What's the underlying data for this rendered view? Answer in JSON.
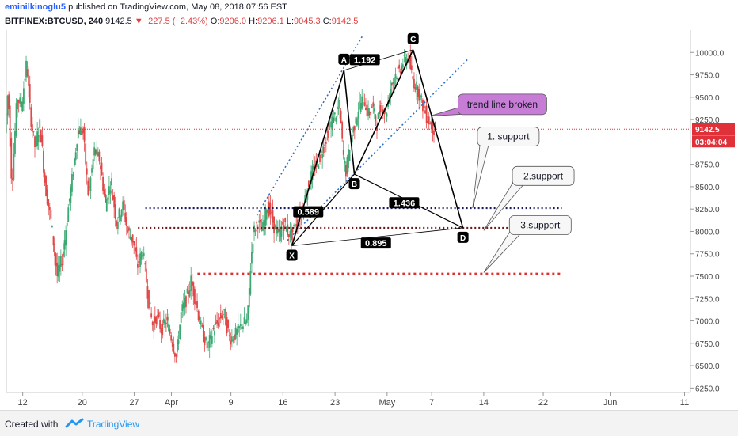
{
  "header": {
    "user": "eminilkinoglu5",
    "published": "published on TradingView.com, May 08, 2018 07:56 EST",
    "symbol": "BITFINEX:BTCUSD, 240",
    "price": "9142.5",
    "change_arrow": "▼",
    "change": "−227.5 (−2.43%)",
    "o_label": "O:",
    "o": "9206.0",
    "h_label": "H:",
    "h": "9206.1",
    "l_label": "L:",
    "l": "9045.3",
    "c_label": "C:",
    "c": "9142.5"
  },
  "footer": {
    "created_with": "Created with",
    "brand": "TradingView",
    "logo_icon": "tradingview-logo-icon"
  },
  "chart_data": {
    "type": "candlestick",
    "ylim": [
      6200,
      10250
    ],
    "y_ticks": [
      6250,
      6500,
      6750,
      7000,
      7250,
      7500,
      7750,
      8000,
      8250,
      8500,
      8750,
      9000,
      9250,
      9500,
      9750,
      10000
    ],
    "y_tick_labels": [
      "6250.0",
      "6500.0",
      "6750.0",
      "7000.0",
      "7250.0",
      "7500.0",
      "7750.0",
      "8000.0",
      "8250.0",
      "8500.0",
      "8750.0",
      "9000.0",
      "9250.0",
      "9500.0",
      "9750.0",
      "10000.0"
    ],
    "x_ticks": [
      {
        "label": "12",
        "day": 0
      },
      {
        "label": "20",
        "day": 8
      },
      {
        "label": "27",
        "day": 15
      },
      {
        "label": "Apr",
        "day": 20
      },
      {
        "label": "9",
        "day": 28
      },
      {
        "label": "16",
        "day": 35
      },
      {
        "label": "23",
        "day": 42
      },
      {
        "label": "May",
        "day": 49
      },
      {
        "label": "7",
        "day": 55
      },
      {
        "label": "14",
        "day": 62
      },
      {
        "label": "22",
        "day": 70
      },
      {
        "label": "Jun",
        "day": 79
      },
      {
        "label": "11",
        "day": 89
      }
    ],
    "x_range_days": [
      -2.2,
      89.8
    ],
    "last_price": {
      "value": 9142.5,
      "label": "9142.5",
      "countdown": "03:04:04",
      "color": "#e0303a"
    },
    "price_path": [
      [
        -2.2,
        9100
      ],
      [
        -1.8,
        9600
      ],
      [
        -1.3,
        8500
      ],
      [
        -0.6,
        9500
      ],
      [
        0,
        9400
      ],
      [
        0.7,
        9900
      ],
      [
        1.2,
        9300
      ],
      [
        1.8,
        8950
      ],
      [
        2.5,
        9200
      ],
      [
        3.2,
        8500
      ],
      [
        4,
        8100
      ],
      [
        4.8,
        7500
      ],
      [
        5.5,
        7700
      ],
      [
        6.2,
        8200
      ],
      [
        7,
        8700
      ],
      [
        7.6,
        9150
      ],
      [
        8.3,
        9100
      ],
      [
        9,
        8400
      ],
      [
        9.8,
        8900
      ],
      [
        10.5,
        8800
      ],
      [
        11.3,
        8300
      ],
      [
        12,
        8550
      ],
      [
        12.8,
        8100
      ],
      [
        13.6,
        8300
      ],
      [
        14.3,
        8000
      ],
      [
        15,
        7900
      ],
      [
        15.6,
        7600
      ],
      [
        16.3,
        7800
      ],
      [
        17,
        7300
      ],
      [
        17.6,
        6950
      ],
      [
        18.2,
        7050
      ],
      [
        18.8,
        6900
      ],
      [
        19.5,
        7000
      ],
      [
        20.2,
        6800
      ],
      [
        20.8,
        6600
      ],
      [
        21.5,
        7100
      ],
      [
        22.2,
        7250
      ],
      [
        22.8,
        7450
      ],
      [
        23.5,
        7200
      ],
      [
        24.2,
        6900
      ],
      [
        25,
        6700
      ],
      [
        25.8,
        6900
      ],
      [
        26.5,
        7000
      ],
      [
        27.2,
        7100
      ],
      [
        28,
        6800
      ],
      [
        28.8,
        6850
      ],
      [
        29.6,
        6950
      ],
      [
        30.4,
        7000
      ],
      [
        30.8,
        7600
      ],
      [
        31.2,
        8000
      ],
      [
        31.8,
        8100
      ],
      [
        32.4,
        8000
      ],
      [
        33.0,
        8300
      ],
      [
        33.5,
        8200
      ],
      [
        34.0,
        8050
      ],
      [
        34.6,
        7950
      ],
      [
        35.2,
        8100
      ],
      [
        35.8,
        8000
      ],
      [
        36.2,
        7950
      ],
      [
        37.0,
        8100
      ],
      [
        37.8,
        8250
      ],
      [
        38.5,
        8500
      ],
      [
        39.3,
        8700
      ],
      [
        40.0,
        8800
      ],
      [
        40.8,
        9000
      ],
      [
        41.6,
        9200
      ],
      [
        42.2,
        9300
      ],
      [
        42.8,
        9400
      ],
      [
        43.2,
        8900
      ],
      [
        43.6,
        8650
      ],
      [
        44.2,
        9000
      ],
      [
        44.8,
        9200
      ],
      [
        45.4,
        9400
      ],
      [
        46.0,
        9500
      ],
      [
        46.6,
        9300
      ],
      [
        47.2,
        9400
      ],
      [
        47.8,
        9200
      ],
      [
        48.4,
        9450
      ],
      [
        49.0,
        9300
      ],
      [
        49.6,
        9600
      ],
      [
        50.2,
        9750
      ],
      [
        50.8,
        9800
      ],
      [
        51.4,
        9900
      ],
      [
        52.0,
        9950
      ],
      [
        52.6,
        9700
      ],
      [
        53.2,
        9600
      ],
      [
        53.8,
        9450
      ],
      [
        54.4,
        9300
      ],
      [
        55.0,
        9200
      ],
      [
        55.5,
        9142.5
      ]
    ],
    "harmonic_pattern": {
      "points": [
        {
          "name": "X",
          "day": 36.2,
          "price": 7840
        },
        {
          "name": "A",
          "day": 43.2,
          "price": 9800
        },
        {
          "name": "B",
          "day": 44.6,
          "price": 8640
        },
        {
          "name": "C",
          "day": 52.5,
          "price": 10030
        },
        {
          "name": "D",
          "day": 59.2,
          "price": 8040
        }
      ],
      "ratios": [
        {
          "label": "0.589",
          "day": 38.4,
          "price": 8220
        },
        {
          "label": "1.192",
          "day": 46.0,
          "price": 9920
        },
        {
          "label": "1.436",
          "day": 51.3,
          "price": 8320
        },
        {
          "label": "0.895",
          "day": 47.5,
          "price": 7870
        }
      ]
    },
    "trend_lines": [
      {
        "from": {
          "day": 31.5,
          "price": 8180
        },
        "to": {
          "day": 45.8,
          "price": 10200
        }
      },
      {
        "from": {
          "day": 35.6,
          "price": 7900
        },
        "to": {
          "day": 59.8,
          "price": 9920
        }
      }
    ],
    "support_lines": [
      {
        "price": 8260,
        "from_day": 16.5,
        "to_day": 72.5,
        "color": "#1a1a5e"
      },
      {
        "price": 8040,
        "from_day": 15.5,
        "to_day": 72.5,
        "color": "#6b1a1a"
      },
      {
        "price": 7525,
        "from_day": 23.5,
        "to_day": 72.5,
        "color": "#e03030"
      }
    ],
    "callouts": [
      {
        "text": "trend line broken",
        "box_day": 64.5,
        "box_price": 9420,
        "tip_day": 54.8,
        "tip_price": 9290,
        "fill": "#c77dd6"
      },
      {
        "text": "1. support",
        "box_day": 65.3,
        "box_price": 9060,
        "tip_day": 60.5,
        "tip_price": 8260,
        "fill": "#f7f7f7"
      },
      {
        "text": "2.support",
        "box_day": 70.0,
        "box_price": 8620,
        "tip_day": 62.0,
        "tip_price": 8010,
        "fill": "#f7f7f7"
      },
      {
        "text": "3.support",
        "box_day": 69.6,
        "box_price": 8070,
        "tip_day": 62.0,
        "tip_price": 7540,
        "fill": "#f7f7f7"
      }
    ]
  }
}
